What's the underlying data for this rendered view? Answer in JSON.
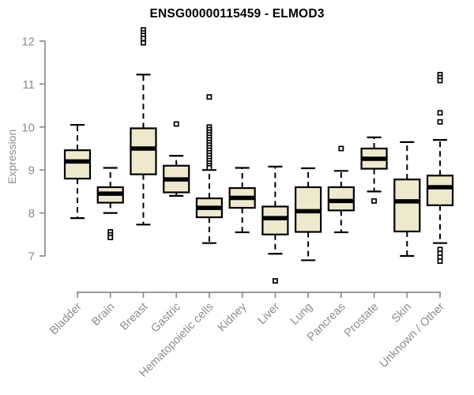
{
  "title": "ENSG00000115459 - ELMOD3",
  "colors": {
    "background": "#ffffff",
    "box_fill": "#EEE8CD",
    "box_border": "#000000",
    "median": "#000000",
    "whisker": "#000000",
    "outlier": "#000000",
    "axis": "#8c8c8c",
    "tick_label": "#8c8c8c",
    "title_text": "#000000"
  },
  "chart_data": {
    "type": "boxplot",
    "title": "ENSG00000115459 - ELMOD3",
    "xlabel": "",
    "ylabel": "Expression",
    "yticks": [
      7,
      8,
      9,
      10,
      11,
      12
    ],
    "ylim": [
      6.3,
      12.4
    ],
    "grid": false,
    "legend": null,
    "categories": [
      "Bladder",
      "Brain",
      "Breast",
      "Gastric",
      "Hematopoietic cells",
      "Kidney",
      "Liver",
      "Lung",
      "Pancreas",
      "Prostate",
      "Skin",
      "Unknown / Other"
    ],
    "boxes": [
      {
        "category": "Bladder",
        "low": 7.88,
        "q1": 8.8,
        "median": 9.2,
        "q3": 9.46,
        "high": 10.05,
        "outliers": []
      },
      {
        "category": "Brain",
        "low": 8.0,
        "q1": 8.24,
        "median": 8.45,
        "q3": 8.6,
        "high": 9.05,
        "outliers": [
          7.56,
          7.49,
          7.43
        ]
      },
      {
        "category": "Breast",
        "low": 7.73,
        "q1": 8.9,
        "median": 9.5,
        "q3": 9.97,
        "high": 11.22,
        "outliers": [
          12.26,
          12.19,
          12.13,
          12.06,
          11.96
        ]
      },
      {
        "category": "Gastric",
        "low": 8.4,
        "q1": 8.48,
        "median": 8.78,
        "q3": 9.1,
        "high": 9.33,
        "outliers": [
          10.07
        ]
      },
      {
        "category": "Hematopoietic cells",
        "low": 7.3,
        "q1": 7.9,
        "median": 8.12,
        "q3": 8.34,
        "high": 9.0,
        "outliers": [
          10.7,
          10.0,
          9.94,
          9.88,
          9.82,
          9.76,
          9.7,
          9.64,
          9.58,
          9.52,
          9.46,
          9.4,
          9.34,
          9.28,
          9.22,
          9.16,
          9.1,
          9.05
        ]
      },
      {
        "category": "Kidney",
        "low": 7.55,
        "q1": 8.12,
        "median": 8.35,
        "q3": 8.58,
        "high": 9.05,
        "outliers": []
      },
      {
        "category": "Liver",
        "low": 7.05,
        "q1": 7.5,
        "median": 7.88,
        "q3": 8.15,
        "high": 9.08,
        "outliers": [
          6.42
        ]
      },
      {
        "category": "Lung",
        "low": 6.9,
        "q1": 7.56,
        "median": 8.04,
        "q3": 8.6,
        "high": 9.04,
        "outliers": []
      },
      {
        "category": "Pancreas",
        "low": 7.55,
        "q1": 8.06,
        "median": 8.28,
        "q3": 8.6,
        "high": 8.98,
        "outliers": [
          9.5
        ]
      },
      {
        "category": "Prostate",
        "low": 8.5,
        "q1": 9.03,
        "median": 9.26,
        "q3": 9.5,
        "high": 9.76,
        "outliers": [
          8.28
        ]
      },
      {
        "category": "Skin",
        "low": 7.0,
        "q1": 7.57,
        "median": 8.27,
        "q3": 8.78,
        "high": 9.65,
        "outliers": []
      },
      {
        "category": "Unknown / Other",
        "low": 7.3,
        "q1": 8.18,
        "median": 8.6,
        "q3": 8.87,
        "high": 9.7,
        "outliers": [
          11.22,
          11.15,
          11.08,
          10.33,
          10.12,
          7.15,
          7.06,
          6.97,
          6.88
        ]
      }
    ]
  }
}
